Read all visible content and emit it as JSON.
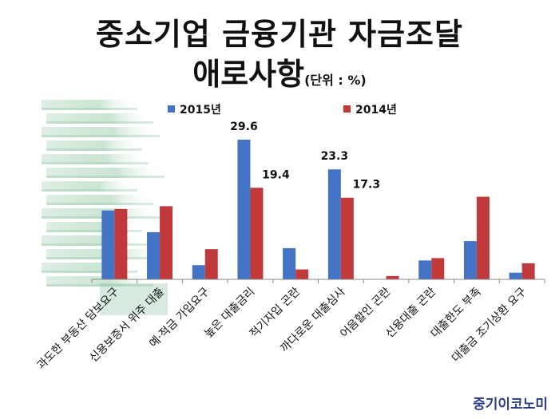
{
  "title": {
    "line1": "중소기업 금융기관 자금조달",
    "line2": "애로사항",
    "unit": "(단위 : %)"
  },
  "brand": "중기이코노미",
  "colors": {
    "series_2015": "#4472C4",
    "series_2014": "#C0393B",
    "axis": "#888888",
    "text": "#111111",
    "photo_green": "#8fc3a2"
  },
  "chart_data": {
    "type": "bar",
    "categories": [
      "과도한 부동산 담보요구",
      "신용보증서 위주 대출",
      "예·적금 가입요구",
      "높은 대출금리",
      "적기자입 곤란",
      "까다로운 대출심사",
      "어음할인 곤란",
      "신용대출 곤란",
      "대출한도 부족",
      "대출금 조기상환 요구"
    ],
    "series": [
      {
        "name": "2015년",
        "values": [
          14.6,
          10.0,
          3.0,
          29.6,
          6.6,
          23.3,
          0.0,
          4.0,
          8.1,
          1.4
        ]
      },
      {
        "name": "2014년",
        "values": [
          14.9,
          15.5,
          6.4,
          19.4,
          2.1,
          17.3,
          0.7,
          4.5,
          17.5,
          3.4
        ]
      }
    ],
    "data_labels": [
      {
        "category": 3,
        "series": 0,
        "text": "29.6"
      },
      {
        "category": 3,
        "series": 1,
        "text": "19.4"
      },
      {
        "category": 5,
        "series": 0,
        "text": "23.3"
      },
      {
        "category": 5,
        "series": 1,
        "text": "17.3"
      }
    ],
    "ylim": [
      0,
      32
    ],
    "grid": false,
    "legend_position": "top"
  }
}
